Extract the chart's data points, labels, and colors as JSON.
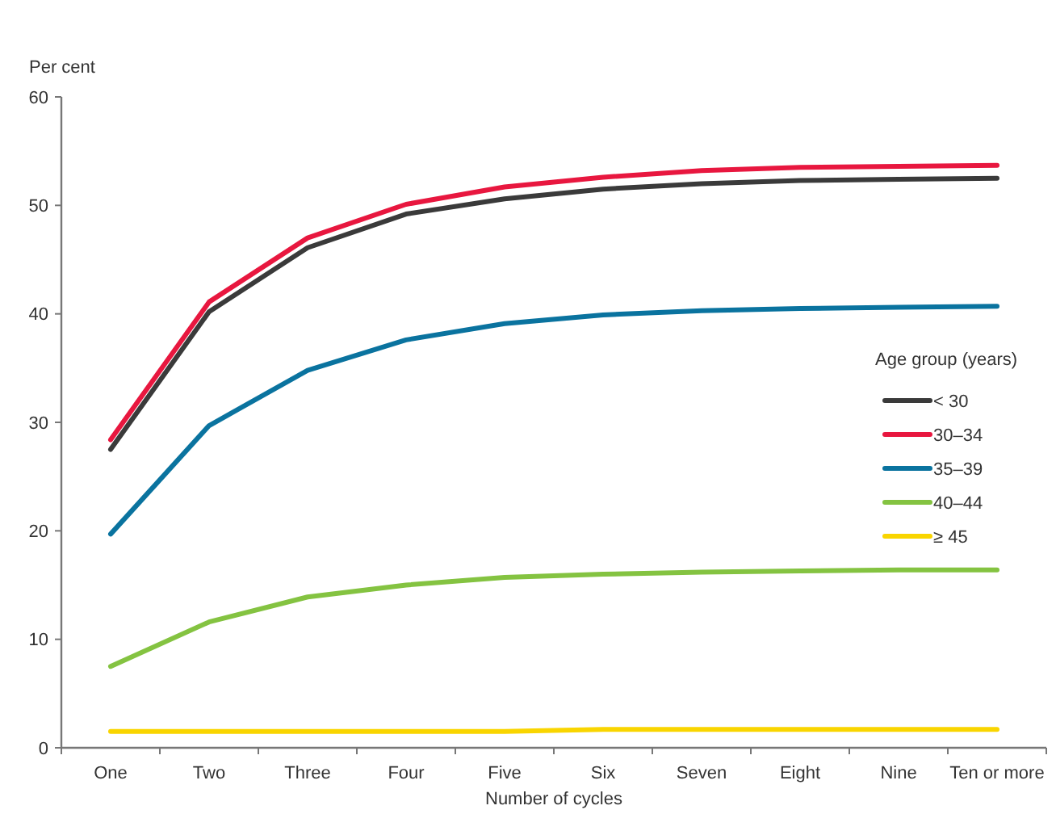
{
  "chart_data": {
    "type": "line",
    "ylabel": "Per cent",
    "xlabel": "Number of cycles",
    "legend_title": "Age group (years)",
    "legend": "right",
    "grid": false,
    "marker": "none",
    "line_style": "solid",
    "categories": [
      "One",
      "Two",
      "Three",
      "Four",
      "Five",
      "Six",
      "Seven",
      "Eight",
      "Nine",
      "Ten or more"
    ],
    "ylim": [
      0,
      60
    ],
    "yticks": [
      0,
      10,
      20,
      30,
      40,
      50,
      60
    ],
    "series": [
      {
        "name": "< 30",
        "color": "#3a3a3a",
        "values": [
          27.5,
          40.2,
          46.1,
          49.2,
          50.6,
          51.5,
          52.0,
          52.3,
          52.4,
          52.5
        ]
      },
      {
        "name": "30–34",
        "color": "#e8173f",
        "values": [
          28.4,
          41.1,
          47.0,
          50.1,
          51.7,
          52.6,
          53.2,
          53.5,
          53.6,
          53.7
        ]
      },
      {
        "name": "35–39",
        "color": "#0a739f",
        "values": [
          19.7,
          29.7,
          34.8,
          37.6,
          39.1,
          39.9,
          40.3,
          40.5,
          40.6,
          40.7
        ]
      },
      {
        "name": "40–44",
        "color": "#84c341",
        "values": [
          7.5,
          11.6,
          13.9,
          15.0,
          15.7,
          16.0,
          16.2,
          16.3,
          16.4,
          16.4
        ]
      },
      {
        "name": "≥ 45",
        "color": "#f9d500",
        "values": [
          1.5,
          1.5,
          1.5,
          1.5,
          1.5,
          1.7,
          1.7,
          1.7,
          1.7,
          1.7
        ]
      }
    ]
  }
}
